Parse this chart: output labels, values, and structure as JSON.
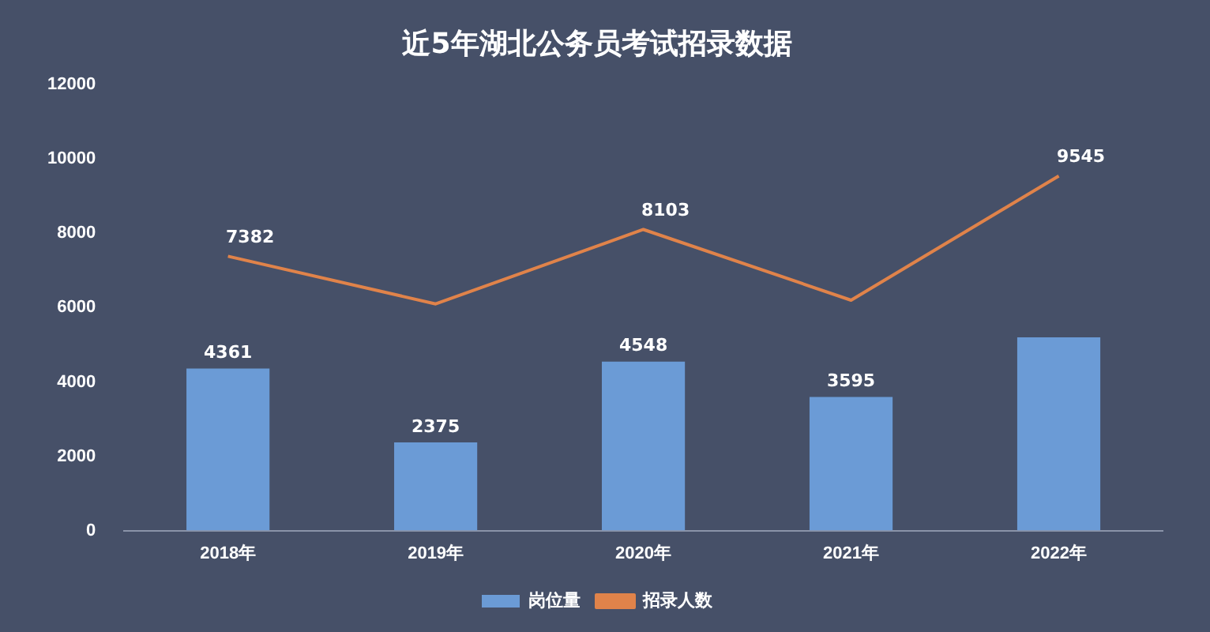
{
  "chart_data": {
    "type": "bar",
    "title": "近5年湖北公务员考试招录数据",
    "categories": [
      "2018年",
      "2019年",
      "2020年",
      "2021年",
      "2022年"
    ],
    "series": [
      {
        "name": "岗位量",
        "color": "#6b9bd6",
        "values": [
          4361,
          2375,
          4548,
          3595,
          5200
        ],
        "value_labels": [
          "4361",
          "2375",
          "4548",
          "3595",
          null
        ]
      },
      {
        "name": "招录人数",
        "type": "line",
        "color": "#e0834a",
        "values": [
          7382,
          6100,
          8103,
          6200,
          9545
        ],
        "value_labels": [
          "7382",
          null,
          "8103",
          null,
          "9545"
        ]
      }
    ],
    "ylim": [
      0,
      12000
    ],
    "yticks": [
      0,
      2000,
      4000,
      6000,
      8000,
      10000,
      12000
    ],
    "grid": false,
    "legend": "bottom",
    "marker": "none"
  }
}
